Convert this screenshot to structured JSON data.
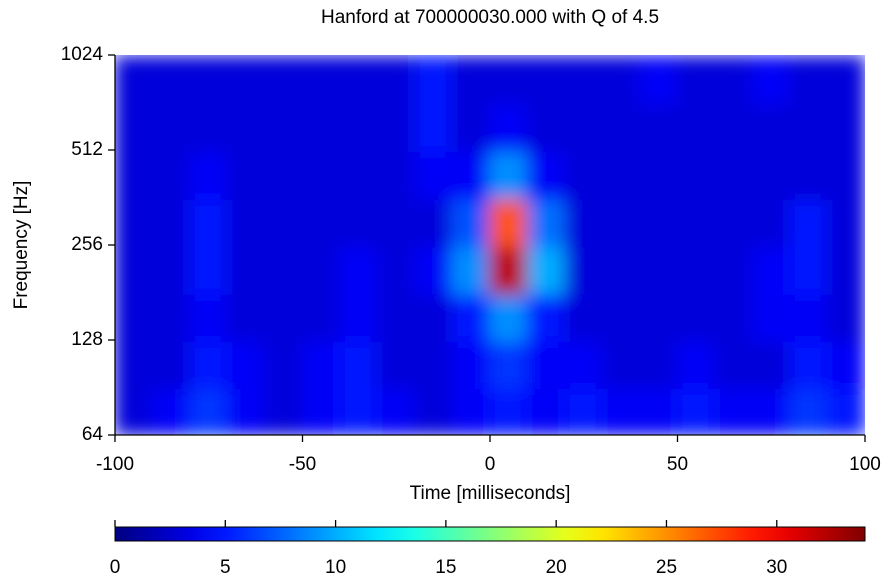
{
  "chart_data": {
    "type": "heatmap",
    "title": "Hanford at 700000030.000 with Q of 4.5",
    "x_label": "Time [milliseconds]",
    "y_label": "Frequency [Hz]",
    "x": [
      -95,
      -85,
      -75,
      -65,
      -55,
      -45,
      -35,
      -25,
      -15,
      -5,
      5,
      15,
      25,
      35,
      45,
      55,
      65,
      75,
      85,
      95
    ],
    "y": [
      76,
      107,
      151,
      213,
      302,
      427,
      604,
      854
    ],
    "z": [
      [
        3,
        4,
        6,
        4,
        3,
        4,
        5,
        4,
        3,
        4,
        5,
        4,
        5,
        4,
        4,
        5,
        4,
        4,
        6,
        5
      ],
      [
        3,
        3,
        5,
        4,
        3,
        4,
        5,
        3,
        3,
        4,
        6,
        4,
        4,
        3,
        3,
        4,
        3,
        3,
        5,
        4
      ],
      [
        3,
        3,
        4,
        3,
        3,
        3,
        4,
        3,
        3,
        5,
        9,
        5,
        3,
        3,
        3,
        3,
        3,
        4,
        4,
        3
      ],
      [
        3,
        3,
        5,
        3,
        3,
        3,
        4,
        3,
        4,
        9,
        32,
        10,
        3,
        3,
        3,
        3,
        3,
        4,
        5,
        3
      ],
      [
        3,
        3,
        5,
        3,
        3,
        3,
        3,
        3,
        3,
        7,
        27,
        8,
        3,
        3,
        3,
        3,
        3,
        3,
        5,
        3
      ],
      [
        3,
        3,
        4,
        3,
        3,
        3,
        3,
        3,
        4,
        4,
        9,
        4,
        3,
        3,
        3,
        3,
        3,
        3,
        3,
        3
      ],
      [
        3,
        3,
        3,
        3,
        3,
        3,
        3,
        3,
        5,
        3,
        4,
        3,
        3,
        3,
        3,
        3,
        3,
        3,
        3,
        3
      ],
      [
        3,
        3,
        3,
        3,
        3,
        3,
        3,
        3,
        5,
        3,
        3,
        3,
        3,
        3,
        4,
        3,
        3,
        4,
        3,
        3
      ]
    ],
    "xlim": [
      -100,
      100
    ],
    "xticks": [
      -100,
      -50,
      0,
      50,
      100
    ],
    "ylim": [
      64,
      1024
    ],
    "yticks": [
      64,
      128,
      256,
      512,
      1024
    ],
    "y_scale": "log",
    "colormap": "jet",
    "clim": [
      0,
      34
    ],
    "cticks": [
      0,
      5,
      10,
      15,
      20,
      25,
      30
    ]
  }
}
